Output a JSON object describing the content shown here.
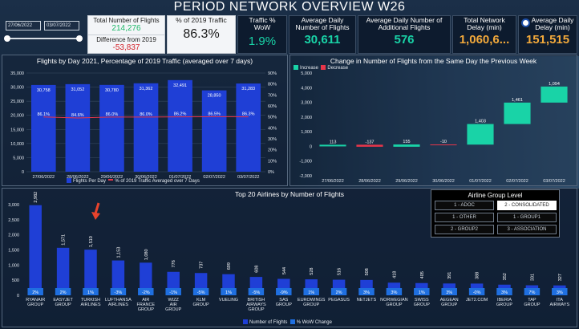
{
  "title": "PERIOD NETWORK OVERVIEW W26",
  "slicer": {
    "from": "27/06/2022",
    "to": "03/07/2022"
  },
  "kpis": {
    "total_flights_label": "Total Number of Flights",
    "total_flights_value": "214,276",
    "difference_label": "Difference from 2019",
    "difference_value": "-53,837",
    "pct_2019_label": "% of 2019 Traffic",
    "pct_2019_value": "86.3%",
    "traffic_wow_label": "Traffic % WoW",
    "traffic_wow_value": "1.9%",
    "avg_daily_label": "Average Daily Number of Flights",
    "avg_daily_value": "30,611",
    "avg_additional_label": "Average Daily Number of Additional Flights",
    "avg_additional_value": "576",
    "total_delay_label": "Total Network Delay (min)",
    "total_delay_value": "1,060,6...",
    "avg_delay_label": "Average Daily Delay (min)",
    "avg_delay_value": "151,515"
  },
  "colors": {
    "bar": "#1f3fd6",
    "increase": "#19d3a7",
    "decrease": "#e8364a",
    "line": "#e8364a",
    "kpi_green": "#1fb96a",
    "kpi_red": "#d2232a"
  },
  "chart_data": [
    {
      "type": "bar",
      "title": "Flights by Day 2021, Percentage of 2019 Traffic (averaged over 7 days)",
      "categories": [
        "27/06/2022",
        "28/06/2022",
        "29/06/2022",
        "30/06/2022",
        "01/07/2022",
        "02/07/2022",
        "03/07/2022"
      ],
      "series": [
        {
          "name": "Flights Per Day",
          "values": [
            30758,
            31052,
            30780,
            31362,
            32491,
            28850,
            31283
          ]
        },
        {
          "name": "% of 2019 Traffic Averaged over 7 Days",
          "values": [
            86.1,
            84.6,
            86.0,
            86.0,
            86.2,
            86.5,
            86.3
          ]
        }
      ],
      "bar_labels": [
        "30,758",
        "31,052",
        "30,780",
        "31,362",
        "32,491",
        "28,850",
        "31,283"
      ],
      "pct_labels": [
        "86.1%",
        "84.6%",
        "86.0%",
        "86.0%",
        "86.2%",
        "86.5%",
        "86.3%"
      ],
      "y_ticks": [
        "0",
        "5,000",
        "10,000",
        "15,000",
        "20,000",
        "25,000",
        "30,000",
        "35,000"
      ],
      "y2_ticks": [
        "0%",
        "10%",
        "20%",
        "30%",
        "40%",
        "50%",
        "60%",
        "70%",
        "80%",
        "90%"
      ],
      "ylim": [
        0,
        35000
      ],
      "legend": [
        "Flights Per Day",
        "% of 2019 Traffic Averaged over 7 Days"
      ]
    },
    {
      "type": "waterfall",
      "title": "Change in Number of Flights from the Same Day the Previous Week",
      "categories": [
        "27/06/2022",
        "28/06/2022",
        "29/06/2022",
        "30/06/2022",
        "01/07/2022",
        "02/07/2022",
        "03/07/2022"
      ],
      "values": [
        113,
        -137,
        155,
        -10,
        1403,
        1461,
        1094
      ],
      "value_labels": [
        "113",
        "-137",
        "155",
        "-10",
        "1,403",
        "1,461",
        "1,094"
      ],
      "y_ticks": [
        "-2,000",
        "-1,000",
        "0",
        "1,000",
        "2,000",
        "3,000",
        "4,000",
        "5,000"
      ],
      "ylim": [
        -2000,
        5000
      ],
      "legend": [
        "Increase",
        "Decrease"
      ]
    },
    {
      "type": "bar",
      "title": "Top 20 Airlines by Number of Flights",
      "categories": [
        "RYANAIR GROUP",
        "EASYJET GROUP",
        "TURKISH AIRLINES",
        "LUFTHANSA AIRLINES",
        "AIR FRANCE GROUP",
        "WIZZ AIR GROUP",
        "KLM GROUP",
        "VUELING",
        "BRITISH AIRWAYS GROUP",
        "SAS GROUP",
        "EUROWINGS GROUP",
        "PEGASUS",
        "NETJETS",
        "NORWEGIAN GROUP",
        "SWISS GROUP",
        "AEGEAN GROUP",
        "JET2.COM",
        "IBERIA GROUP",
        "TAP GROUP",
        "ITA AIRWAYS"
      ],
      "series": [
        {
          "name": "Number of Flights",
          "values": [
            2982,
            1571,
            1510,
            1153,
            1080,
            776,
            737,
            699,
            608,
            544,
            528,
            516,
            508,
            418,
            405,
            391,
            388,
            352,
            331,
            327
          ]
        },
        {
          "name": "% WoW Change",
          "values": [
            2,
            2,
            1,
            -3,
            -2,
            -1,
            -5,
            1,
            -5,
            -9,
            1,
            2,
            3,
            3,
            1,
            3,
            0,
            3,
            7,
            3
          ]
        }
      ],
      "value_labels": [
        "2,982",
        "1,571",
        "1,510",
        "1,153",
        "1,080",
        "776",
        "737",
        "699",
        "608",
        "544",
        "528",
        "516",
        "508",
        "418",
        "405",
        "391",
        "388",
        "352",
        "331",
        "327"
      ],
      "pct_labels": [
        "2%",
        "2%",
        "1%",
        "-3%",
        "-2%",
        "-1%",
        "-5%",
        "1%",
        "-5%",
        "-9%",
        "1%",
        "2%",
        "3%",
        "3%",
        "1%",
        "3%",
        "-0%",
        "3%",
        "7%",
        "3%"
      ],
      "y_ticks": [
        "0",
        "500",
        "1,000",
        "1,500",
        "2,000",
        "2,500",
        "3,000"
      ],
      "ylim": [
        0,
        3000
      ],
      "legend": [
        "Number of Flights",
        "% WoW Change"
      ]
    }
  ],
  "airline_group": {
    "title": "Airline Group Level",
    "options": [
      "1 - ADOC",
      "2 - CONSOLIDATED",
      "1 - OTHER",
      "1 - GROUP1",
      "2 - GROUP2",
      "3 - ASSOCIATION"
    ],
    "selected_index": 1
  }
}
